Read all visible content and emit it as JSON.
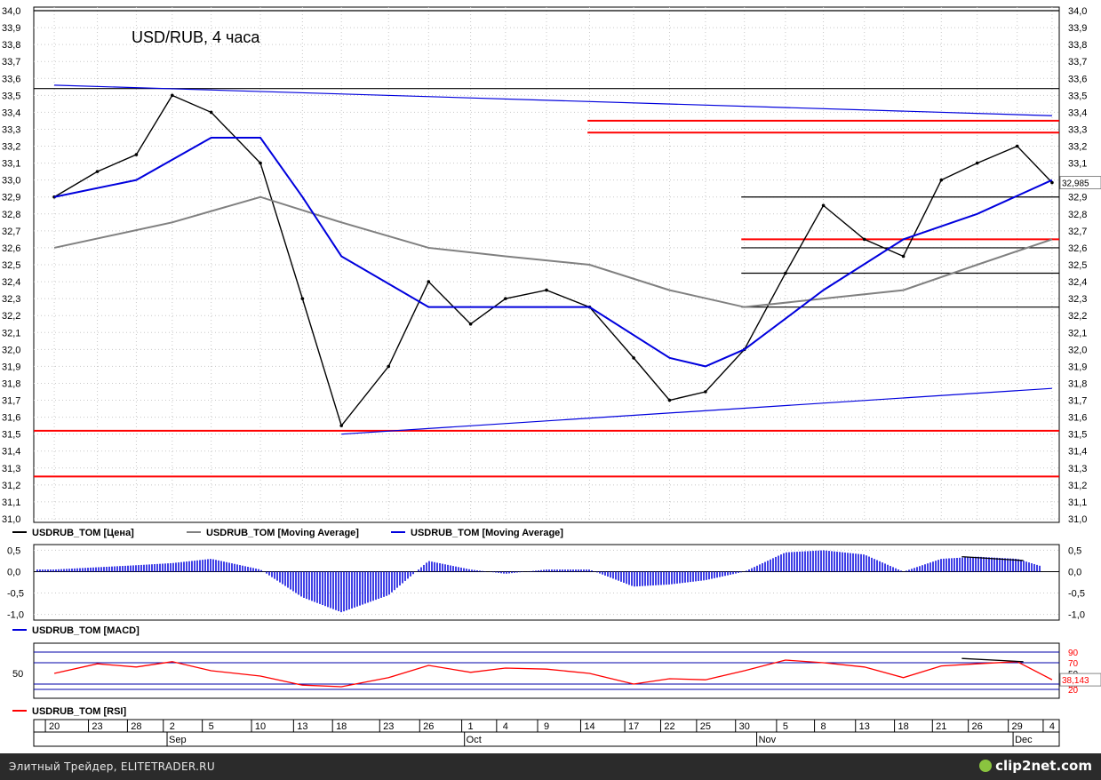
{
  "chart_data": [
    {
      "type": "line",
      "title": "USD/RUB, 4 часа",
      "y_ticks": [
        "34,0",
        "33,9",
        "33,8",
        "33,7",
        "33,6",
        "33,5",
        "33,4",
        "33,3",
        "33,2",
        "33,1",
        "33,0",
        "32,9",
        "32,8",
        "32,7",
        "32,6",
        "32,5",
        "32,4",
        "32,3",
        "32,2",
        "32,1",
        "32,0",
        "31,9",
        "31,8",
        "31,7",
        "31,6",
        "31,5",
        "31,4",
        "31,3",
        "31,2",
        "31,1",
        "31,0"
      ],
      "ylim": [
        31.0,
        34.0
      ],
      "last_value_label": "32,985",
      "last_value": 32.985,
      "legend": [
        {
          "name": "USDRUB_TOM [Цена]",
          "color": "#000000"
        },
        {
          "name": "USDRUB_TOM [Moving Average]",
          "color": "#808080"
        },
        {
          "name": "USDRUB_TOM [Moving Average]",
          "color": "#0000dd"
        }
      ],
      "series": [
        {
          "name": "USDRUB_TOM [Цена]",
          "color": "#000000",
          "x": [
            "Aug 20",
            "Aug 23",
            "Aug 28",
            "Sep 2",
            "Sep 5",
            "Sep 10",
            "Sep 13",
            "Sep 18",
            "Sep 23",
            "Sep 26",
            "Oct 1",
            "Oct 4",
            "Oct 9",
            "Oct 14",
            "Oct 17",
            "Oct 22",
            "Oct 25",
            "Oct 30",
            "Nov 5",
            "Nov 8",
            "Nov 13",
            "Nov 18",
            "Nov 21",
            "Nov 26",
            "Nov 29",
            "Dec 4"
          ],
          "values": [
            32.9,
            33.05,
            33.15,
            33.5,
            33.4,
            33.1,
            32.3,
            31.55,
            31.9,
            32.4,
            32.15,
            32.3,
            32.35,
            32.25,
            31.95,
            31.7,
            31.75,
            32.0,
            32.45,
            32.85,
            32.65,
            32.55,
            33.0,
            33.1,
            33.2,
            32.985
          ]
        },
        {
          "name": "USDRUB_TOM [Moving Average]",
          "color": "#808080",
          "x": [
            "Aug 20",
            "Sep 2",
            "Sep 10",
            "Sep 18",
            "Sep 26",
            "Oct 4",
            "Oct 14",
            "Oct 22",
            "Oct 30",
            "Nov 8",
            "Nov 18",
            "Nov 26",
            "Dec 4"
          ],
          "values": [
            32.6,
            32.75,
            32.9,
            32.75,
            32.6,
            32.55,
            32.5,
            32.35,
            32.25,
            32.3,
            32.35,
            32.5,
            32.65
          ]
        },
        {
          "name": "USDRUB_TOM [Moving Average]",
          "color": "#0000dd",
          "x": [
            "Aug 20",
            "Aug 28",
            "Sep 5",
            "Sep 10",
            "Sep 13",
            "Sep 18",
            "Sep 26",
            "Oct 4",
            "Oct 14",
            "Oct 22",
            "Oct 25",
            "Oct 30",
            "Nov 8",
            "Nov 18",
            "Nov 26",
            "Dec 4"
          ],
          "values": [
            32.9,
            33.0,
            33.25,
            33.25,
            32.9,
            32.55,
            32.25,
            32.25,
            32.25,
            31.95,
            31.9,
            32.0,
            32.35,
            32.65,
            32.8,
            33.0
          ]
        }
      ],
      "levels": [
        {
          "name": "resistance",
          "value": 34.0,
          "color": "#000000"
        },
        {
          "name": "resistance",
          "value": 33.54,
          "color": "#000000"
        },
        {
          "name": "resistance",
          "value": 33.35,
          "color": "#ff0000"
        },
        {
          "name": "resistance",
          "value": 33.28,
          "color": "#ff0000"
        },
        {
          "name": "level",
          "value": 32.9,
          "color": "#000000"
        },
        {
          "name": "level",
          "value": 32.65,
          "color": "#ff0000"
        },
        {
          "name": "level",
          "value": 32.6,
          "color": "#000000"
        },
        {
          "name": "level",
          "value": 32.45,
          "color": "#000000"
        },
        {
          "name": "level",
          "value": 32.25,
          "color": "#000000"
        },
        {
          "name": "support",
          "value": 31.52,
          "color": "#ff0000"
        },
        {
          "name": "support",
          "value": 31.25,
          "color": "#ff0000"
        }
      ],
      "trendlines": [
        {
          "from": [
            "Aug 20",
            33.56
          ],
          "to": [
            "Dec 4",
            33.38
          ],
          "color": "#0000dd"
        },
        {
          "from": [
            "Sep 18",
            31.5
          ],
          "to": [
            "Dec 4",
            31.77
          ],
          "color": "#0000dd"
        }
      ],
      "grid": true
    },
    {
      "type": "bar",
      "title": "",
      "y_ticks": [
        "0,5",
        "0,0",
        "-0,5",
        "-1,0"
      ],
      "ylim": [
        -1.05,
        0.55
      ],
      "legend": [
        {
          "name": "USDRUB_TOM [MACD]",
          "color": "#0000dd"
        }
      ],
      "series": [
        {
          "name": "USDRUB_TOM [MACD]",
          "color": "#0000dd",
          "x": [
            "Aug 20",
            "Aug 28",
            "Sep 2",
            "Sep 5",
            "Sep 10",
            "Sep 13",
            "Sep 18",
            "Sep 23",
            "Sep 26",
            "Oct 1",
            "Oct 4",
            "Oct 9",
            "Oct 14",
            "Oct 17",
            "Oct 22",
            "Oct 25",
            "Oct 30",
            "Nov 5",
            "Nov 8",
            "Nov 13",
            "Nov 18",
            "Nov 21",
            "Nov 26",
            "Nov 29",
            "Dec 4"
          ],
          "values": [
            0.05,
            0.15,
            0.2,
            0.3,
            0.05,
            -0.6,
            -0.95,
            -0.55,
            0.25,
            0.05,
            -0.05,
            0.05,
            0.05,
            -0.35,
            -0.3,
            -0.2,
            0.0,
            0.45,
            0.5,
            0.4,
            0.0,
            0.3,
            0.35,
            0.3,
            0.05
          ]
        }
      ]
    },
    {
      "type": "line",
      "title": "",
      "y_ticks": [
        "90",
        "70",
        "50",
        "30",
        "20"
      ],
      "ylim": [
        10,
        100
      ],
      "last_value_label": "38,143",
      "last_value": 38.143,
      "legend": [
        {
          "name": "USDRUB_TOM [RSI]",
          "color": "#ff0000"
        }
      ],
      "series": [
        {
          "name": "USDRUB_TOM [RSI]",
          "color": "#ff0000",
          "x": [
            "Aug 20",
            "Aug 23",
            "Aug 28",
            "Sep 2",
            "Sep 5",
            "Sep 10",
            "Sep 13",
            "Sep 18",
            "Sep 23",
            "Sep 26",
            "Oct 1",
            "Oct 4",
            "Oct 9",
            "Oct 14",
            "Oct 17",
            "Oct 22",
            "Oct 25",
            "Oct 30",
            "Nov 5",
            "Nov 8",
            "Nov 13",
            "Nov 18",
            "Nov 21",
            "Nov 26",
            "Nov 29",
            "Dec 4"
          ],
          "values": [
            50,
            68,
            62,
            72,
            55,
            45,
            28,
            25,
            42,
            65,
            52,
            60,
            58,
            50,
            30,
            40,
            38,
            55,
            75,
            70,
            62,
            42,
            64,
            68,
            72,
            38.143
          ]
        }
      ]
    }
  ],
  "x_axis": {
    "days": [
      {
        "label": "20",
        "pos": 0.02
      },
      {
        "label": "23",
        "pos": 0.062
      },
      {
        "label": "28",
        "pos": 0.1
      },
      {
        "label": "2",
        "pos": 0.135
      },
      {
        "label": "5",
        "pos": 0.173
      },
      {
        "label": "10",
        "pos": 0.221
      },
      {
        "label": "13",
        "pos": 0.262
      },
      {
        "label": "18",
        "pos": 0.3
      },
      {
        "label": "23",
        "pos": 0.346
      },
      {
        "label": "26",
        "pos": 0.385
      },
      {
        "label": "1",
        "pos": 0.426
      },
      {
        "label": "4",
        "pos": 0.46
      },
      {
        "label": "9",
        "pos": 0.5
      },
      {
        "label": "14",
        "pos": 0.542
      },
      {
        "label": "17",
        "pos": 0.585
      },
      {
        "label": "22",
        "pos": 0.62
      },
      {
        "label": "25",
        "pos": 0.655
      },
      {
        "label": "30",
        "pos": 0.693
      },
      {
        "label": "5",
        "pos": 0.733
      },
      {
        "label": "8",
        "pos": 0.77
      },
      {
        "label": "13",
        "pos": 0.81
      },
      {
        "label": "18",
        "pos": 0.848
      },
      {
        "label": "21",
        "pos": 0.885
      },
      {
        "label": "26",
        "pos": 0.92
      },
      {
        "label": "29",
        "pos": 0.959
      },
      {
        "label": "4",
        "pos": 0.993
      }
    ],
    "months": [
      {
        "label": "Sep",
        "pos": 0.13
      },
      {
        "label": "Oct",
        "pos": 0.42
      },
      {
        "label": "Nov",
        "pos": 0.705
      },
      {
        "label": "Dec",
        "pos": 0.955
      }
    ]
  },
  "footer": {
    "left_text": "Элитный Трейдер, ELITETRADER.RU",
    "brand": "clip2net.com"
  }
}
